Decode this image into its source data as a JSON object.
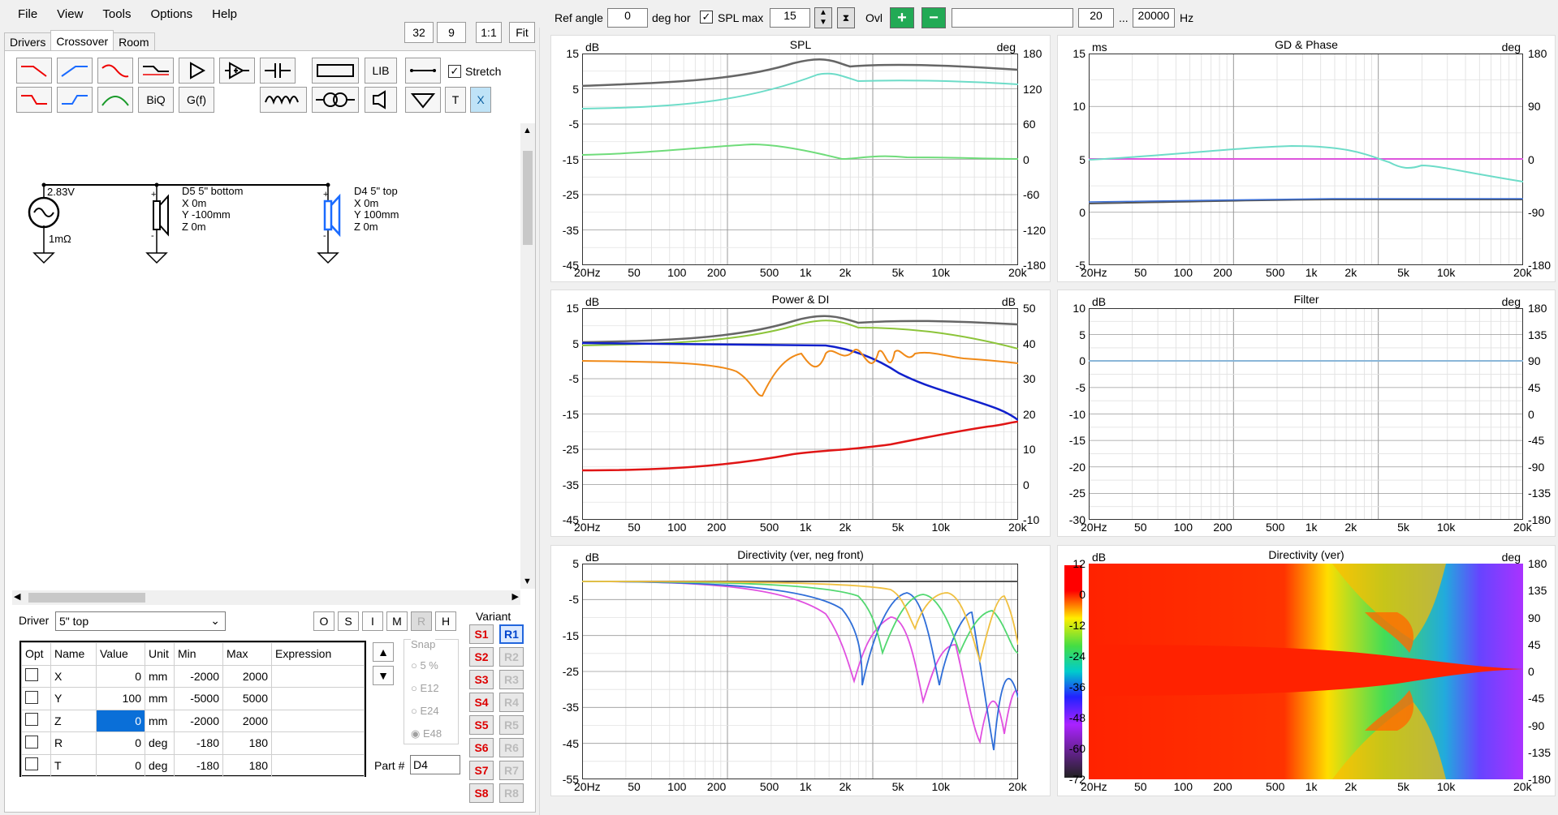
{
  "menu": [
    "File",
    "View",
    "Tools",
    "Options",
    "Help"
  ],
  "tabs": [
    "Drivers",
    "Crossover",
    "Room"
  ],
  "zoom": {
    "a": "32",
    "b": "9",
    "c": "1:1",
    "d": "Fit"
  },
  "toolbar": {
    "lib": "LIB",
    "stretch": "Stretch",
    "biq": "BiQ",
    "gf": "G(f)",
    "t": "T",
    "x": "X"
  },
  "schematic": {
    "source_v": "2.83V",
    "source_r": "1mΩ",
    "d5": {
      "name": "D5 5\" bottom",
      "x": "X 0m",
      "y": "Y -100mm",
      "z": "Z 0m"
    },
    "d4": {
      "name": "D4 5\" top",
      "x": "X 0m",
      "y": "Y 100mm",
      "z": "Z 0m"
    }
  },
  "driver": {
    "label": "Driver",
    "value": "5\" top"
  },
  "modes": [
    "O",
    "S",
    "I",
    "M",
    "R",
    "H"
  ],
  "table": {
    "headers": [
      "Opt",
      "Name",
      "Value",
      "Unit",
      "Min",
      "Max",
      "Expression"
    ],
    "rows": [
      {
        "name": "X",
        "value": "0",
        "unit": "mm",
        "min": "-2000",
        "max": "2000"
      },
      {
        "name": "Y",
        "value": "100",
        "unit": "mm",
        "min": "-5000",
        "max": "5000"
      },
      {
        "name": "Z",
        "value": "0",
        "unit": "mm",
        "min": "-2000",
        "max": "2000"
      },
      {
        "name": "R",
        "value": "0",
        "unit": "deg",
        "min": "-180",
        "max": "180"
      },
      {
        "name": "T",
        "value": "0",
        "unit": "deg",
        "min": "-180",
        "max": "180"
      }
    ]
  },
  "snap": {
    "label": "Snap",
    "options": [
      "5 %",
      "E12",
      "E24",
      "E48"
    ]
  },
  "part": {
    "label": "Part #",
    "value": "D4"
  },
  "variant": {
    "label": "Variant",
    "s": [
      "S1",
      "S2",
      "S3",
      "S4",
      "S5",
      "S6",
      "S7",
      "S8"
    ],
    "r": [
      "R1",
      "R2",
      "R3",
      "R4",
      "R5",
      "R6",
      "R7",
      "R8"
    ]
  },
  "top": {
    "ref_angle": "Ref angle",
    "ref_value": "0",
    "deg_hor": "deg hor",
    "spl_max": "SPL max",
    "spl_value": "15",
    "ovl": "Ovl",
    "f_lo": "20",
    "dots": "...",
    "f_hi": "20000",
    "hz": "Hz"
  },
  "freq_ticks": [
    "20Hz",
    "50",
    "100",
    "200",
    "500",
    "1k",
    "2k",
    "5k",
    "10k",
    "20k"
  ],
  "plots": {
    "spl": {
      "title": "SPL",
      "lunit": "dB",
      "runit": "deg",
      "left": [
        "15",
        "5",
        "-5",
        "-15",
        "-25",
        "-35",
        "-45"
      ],
      "right": [
        "180",
        "120",
        "60",
        "0",
        "-60",
        "-120",
        "-180"
      ]
    },
    "gd": {
      "title": "GD & Phase",
      "lunit": "ms",
      "runit": "deg",
      "left": [
        "15",
        "10",
        "5",
        "0",
        "-5"
      ],
      "right": [
        "180",
        "90",
        "0",
        "-90",
        "-180"
      ]
    },
    "pdi": {
      "title": "Power & DI",
      "lunit": "dB",
      "runit": "dB",
      "left": [
        "15",
        "5",
        "-5",
        "-15",
        "-25",
        "-35",
        "-45"
      ],
      "right": [
        "50",
        "40",
        "30",
        "20",
        "10",
        "0",
        "-10"
      ]
    },
    "filter": {
      "title": "Filter",
      "lunit": "dB",
      "runit": "deg",
      "left": [
        "10",
        "5",
        "0",
        "-5",
        "-10",
        "-15",
        "-20",
        "-25",
        "-30"
      ],
      "right": [
        "180",
        "135",
        "90",
        "45",
        "0",
        "-45",
        "-90",
        "-135",
        "-180"
      ]
    },
    "dirneg": {
      "title": "Directivity (ver, neg front)",
      "lunit": "dB",
      "runit": "",
      "left": [
        "5",
        "-5",
        "-15",
        "-25",
        "-35",
        "-45",
        "-55"
      ],
      "right": []
    },
    "dirver": {
      "title": "Directivity (ver)",
      "lunit": "dB",
      "runit": "deg",
      "left": [
        "12",
        "0",
        "-12",
        "-24",
        "-36",
        "-48",
        "-60",
        "-72"
      ],
      "right": [
        "180",
        "135",
        "90",
        "45",
        "0",
        "-45",
        "-90",
        "-135",
        "-180"
      ]
    }
  }
}
